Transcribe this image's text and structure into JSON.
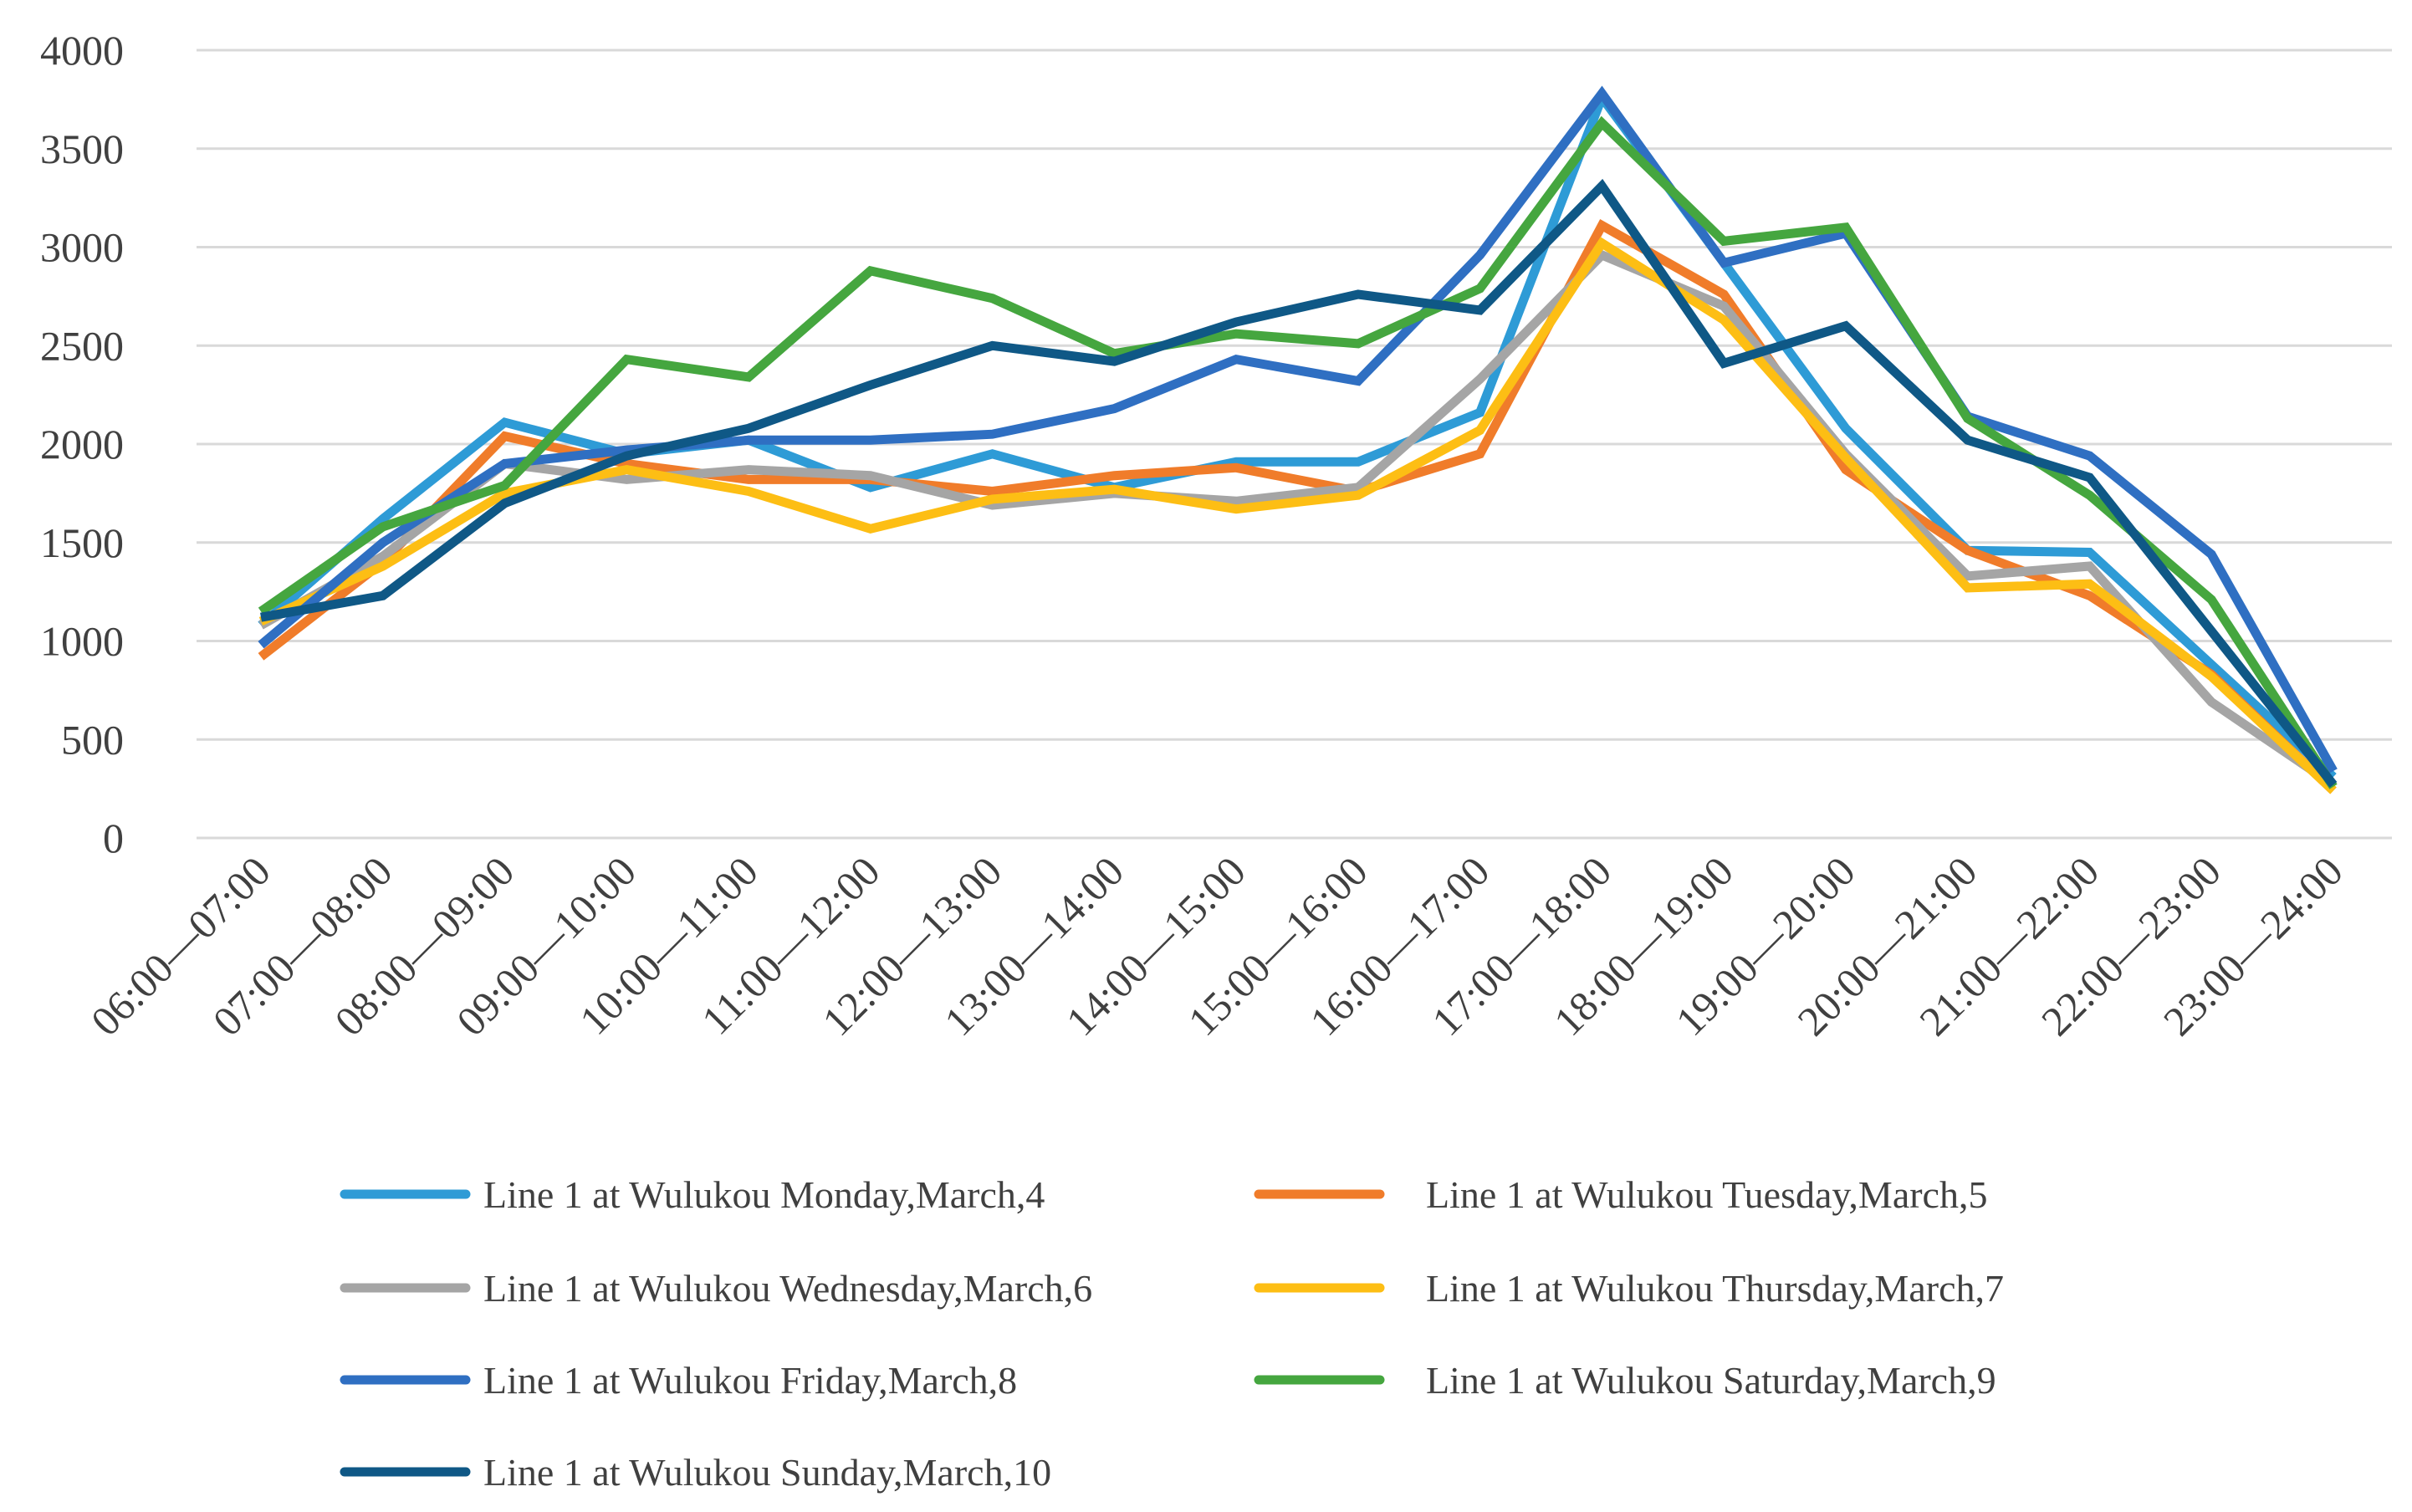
{
  "chart_data": {
    "type": "line",
    "title": "",
    "xlabel": "",
    "ylabel": "",
    "ylim": [
      0,
      4000
    ],
    "yticks": [
      0,
      500,
      1000,
      1500,
      2000,
      2500,
      3000,
      3500,
      4000
    ],
    "grid": true,
    "legend_position": "bottom",
    "categories": [
      "06:00—07:00",
      "07:00—08:00",
      "08:00—09:00",
      "09:00—10:00",
      "10:00—11:00",
      "11:00—12:00",
      "12:00—13:00",
      "13:00—14:00",
      "14:00—15:00",
      "15:00—16:00",
      "16:00—17:00",
      "17:00—18:00",
      "18:00—19:00",
      "19:00—20:00",
      "20:00—21:00",
      "21:00—22:00",
      "22:00—23:00",
      "23:00—24:00"
    ],
    "series": [
      {
        "name": "Line 1 at Wulukou Monday,March,4",
        "color": "#2E9BD6",
        "values": [
          1080,
          1620,
          2110,
          1950,
          2020,
          1780,
          1950,
          1780,
          1910,
          1910,
          2160,
          3760,
          2920,
          2080,
          1460,
          1450,
          880,
          310
        ]
      },
      {
        "name": "Line 1 at Wulukou Tuesday,March,5",
        "color": "#F07C2A",
        "values": [
          920,
          1400,
          2040,
          1900,
          1820,
          1820,
          1760,
          1840,
          1880,
          1760,
          1950,
          3110,
          2760,
          1870,
          1460,
          1230,
          830,
          240
        ]
      },
      {
        "name": "Line 1 at Wulukou Wednesday,March,6",
        "color": "#A5A5A5",
        "values": [
          1080,
          1430,
          1900,
          1820,
          1870,
          1840,
          1690,
          1750,
          1710,
          1780,
          2330,
          2960,
          2700,
          1950,
          1330,
          1380,
          690,
          270
        ]
      },
      {
        "name": "Line 1 at Wulukou Thursday,March,7",
        "color": "#FDBE14",
        "values": [
          1100,
          1380,
          1750,
          1870,
          1760,
          1570,
          1720,
          1770,
          1670,
          1740,
          2070,
          3020,
          2630,
          1930,
          1270,
          1290,
          820,
          240
        ]
      },
      {
        "name": "Line 1 at Wulukou Friday,March,8",
        "color": "#2F6FC2",
        "values": [
          980,
          1500,
          1900,
          1970,
          2020,
          2020,
          2050,
          2180,
          2430,
          2320,
          2960,
          3780,
          2920,
          3070,
          2140,
          1940,
          1440,
          340
        ]
      },
      {
        "name": "Line 1 at Wulukou Saturday,March,9",
        "color": "#45A63F",
        "values": [
          1150,
          1580,
          1790,
          2430,
          2340,
          2880,
          2740,
          2460,
          2560,
          2510,
          2790,
          3630,
          3030,
          3100,
          2130,
          1740,
          1210,
          260
        ]
      },
      {
        "name": "Line 1 at Wulukou Sunday,March,10",
        "color": "#0F5886",
        "values": [
          1120,
          1230,
          1700,
          1940,
          2080,
          2300,
          2500,
          2420,
          2620,
          2760,
          2680,
          3310,
          2410,
          2600,
          2020,
          1830,
          1050,
          270
        ]
      }
    ]
  }
}
